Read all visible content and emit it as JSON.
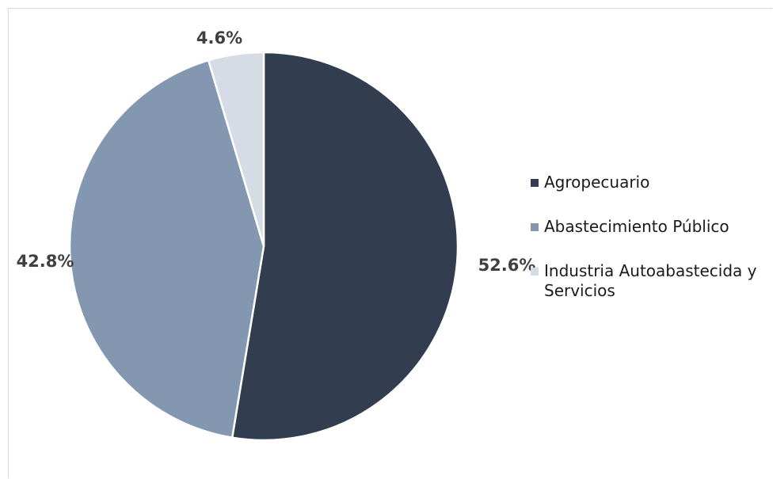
{
  "chart_data": {
    "type": "pie",
    "categories": [
      "Agropecuario",
      "Abastecimiento Público",
      "Industria Autoabastecida y Servicios"
    ],
    "values": [
      52.6,
      42.8,
      4.6
    ],
    "data_labels": [
      "52.6%",
      "42.8%",
      "4.6%"
    ],
    "colors": [
      "#333d50",
      "#8497b0",
      "#d6dce5"
    ],
    "title": "",
    "legend_position": "right",
    "start_angle_deg": 0,
    "direction": "clockwise"
  },
  "legend": {
    "items": [
      {
        "label": "Agropecuario",
        "color": "#333d50"
      },
      {
        "label": "Abastecimiento Público",
        "color": "#8497b0"
      },
      {
        "label": "Industria Autoabastecida y Servicios",
        "color": "#d6dce5"
      }
    ]
  }
}
